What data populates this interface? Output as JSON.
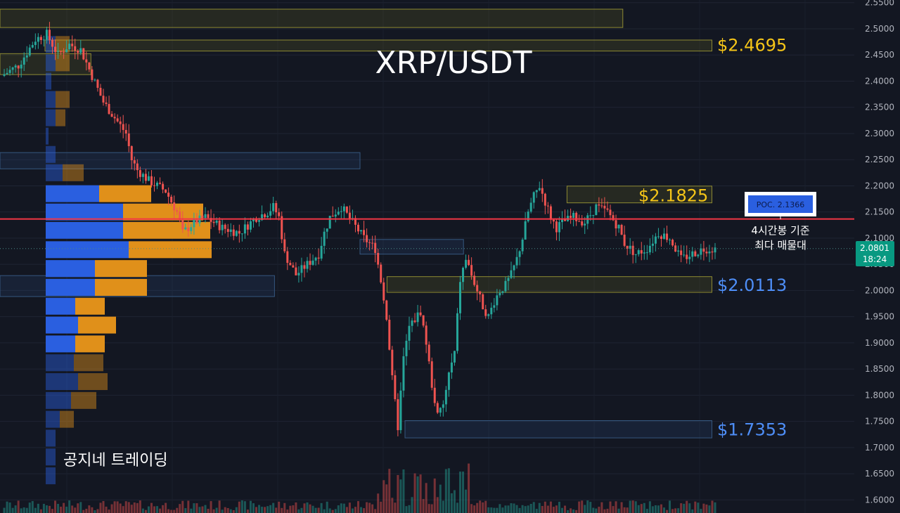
{
  "chart_data": {
    "type": "candlestick",
    "title": "XRP/USDT",
    "watermark": "공지네 트레이딩",
    "ylim": [
      1.575,
      2.555
    ],
    "y_ticks": [
      "2.5500",
      "2.5000",
      "2.4500",
      "2.4000",
      "2.3500",
      "2.3000",
      "2.2500",
      "2.2000",
      "2.1500",
      "2.1000",
      "2.0500",
      "2.0000",
      "1.9500",
      "1.9000",
      "1.8500",
      "1.8000",
      "1.7500",
      "1.7000",
      "1.6500",
      "1.6000"
    ],
    "current_price": {
      "value": "2.0801",
      "countdown": "18:24",
      "level": 2.0801
    },
    "poc": {
      "label": "POC. 2.1366",
      "level": 2.1366,
      "note_line1": "4시간봉 기준",
      "note_line2": "최다 매물대"
    },
    "price_levels": [
      {
        "label": "$2.4695",
        "level": 2.4695,
        "color": "#f5c518"
      },
      {
        "label": "$2.1825",
        "level": 2.1825,
        "color": "#f5c518"
      },
      {
        "label": "$2.0113",
        "level": 2.0113,
        "color": "#4e8ef7"
      },
      {
        "label": "$1.7353",
        "level": 1.7353,
        "color": "#4e8ef7"
      }
    ],
    "zones": [
      {
        "y_top": 2.5375,
        "y_bottom": 2.5025,
        "x_start": 0,
        "x_end": 0.692,
        "kind": "supply"
      },
      {
        "y_top": 2.4785,
        "y_bottom": 2.4575,
        "x_start": 0.05,
        "x_end": 0.791,
        "kind": "supply"
      },
      {
        "y_top": 2.4525,
        "y_bottom": 2.4125,
        "x_start": 0,
        "x_end": 0.101,
        "kind": "supply"
      },
      {
        "y_top": 2.2635,
        "y_bottom": 2.2325,
        "x_start": 0,
        "x_end": 0.4,
        "kind": "demand"
      },
      {
        "y_top": 2.1995,
        "y_bottom": 2.1675,
        "x_start": 0.63,
        "x_end": 0.791,
        "kind": "supply"
      },
      {
        "y_top": 2.0975,
        "y_bottom": 2.0695,
        "x_start": 0.4,
        "x_end": 0.515,
        "kind": "demand"
      },
      {
        "y_top": 2.0285,
        "y_bottom": 1.9885,
        "x_start": 0,
        "x_end": 0.305,
        "kind": "demand"
      },
      {
        "y_top": 2.0265,
        "y_bottom": 1.9965,
        "x_start": 0.43,
        "x_end": 0.791,
        "kind": "supply"
      },
      {
        "y_top": 1.7515,
        "y_bottom": 1.7185,
        "x_start": 0.45,
        "x_end": 0.791,
        "kind": "demand"
      }
    ],
    "volume_profile": [
      {
        "y": 2.47,
        "buy": 14,
        "sell": 20,
        "faded": true
      },
      {
        "y": 2.435,
        "buy": 14,
        "sell": 20,
        "faded": true
      },
      {
        "y": 2.4,
        "buy": 8,
        "sell": 0,
        "faded": true
      },
      {
        "y": 2.365,
        "buy": 14,
        "sell": 20,
        "faded": true
      },
      {
        "y": 2.33,
        "buy": 14,
        "sell": 14,
        "faded": true
      },
      {
        "y": 2.295,
        "buy": 4,
        "sell": 0,
        "faded": true
      },
      {
        "y": 2.26,
        "buy": 14,
        "sell": 0,
        "faded": true
      },
      {
        "y": 2.225,
        "buy": 24,
        "sell": 30,
        "faded": true
      },
      {
        "y": 2.185,
        "buy": 76,
        "sell": 74,
        "faded": false
      },
      {
        "y": 2.15,
        "buy": 110,
        "sell": 114,
        "faded": false
      },
      {
        "y": 2.115,
        "buy": 110,
        "sell": 124,
        "faded": false
      },
      {
        "y": 2.078,
        "buy": 118,
        "sell": 118,
        "faded": false
      },
      {
        "y": 2.042,
        "buy": 70,
        "sell": 74,
        "faded": false
      },
      {
        "y": 2.006,
        "buy": 70,
        "sell": 74,
        "faded": false
      },
      {
        "y": 1.97,
        "buy": 42,
        "sell": 42,
        "faded": false
      },
      {
        "y": 1.934,
        "buy": 46,
        "sell": 54,
        "faded": false
      },
      {
        "y": 1.898,
        "buy": 42,
        "sell": 42,
        "faded": false
      },
      {
        "y": 1.862,
        "buy": 40,
        "sell": 42,
        "faded": true
      },
      {
        "y": 1.826,
        "buy": 46,
        "sell": 42,
        "faded": true
      },
      {
        "y": 1.79,
        "buy": 36,
        "sell": 36,
        "faded": true
      },
      {
        "y": 1.754,
        "buy": 20,
        "sell": 20,
        "faded": true
      },
      {
        "y": 1.718,
        "buy": 14,
        "sell": 0,
        "faded": true
      },
      {
        "y": 1.682,
        "buy": 14,
        "sell": 0,
        "faded": true
      },
      {
        "y": 1.646,
        "buy": 14,
        "sell": 0,
        "faded": true
      }
    ],
    "price_path": [
      [
        0,
        2.41
      ],
      [
        6,
        2.43
      ],
      [
        12,
        2.48
      ],
      [
        16,
        2.49
      ],
      [
        20,
        2.45
      ],
      [
        24,
        2.47
      ],
      [
        28,
        2.46
      ],
      [
        32,
        2.41
      ],
      [
        36,
        2.36
      ],
      [
        40,
        2.33
      ],
      [
        44,
        2.3
      ],
      [
        46,
        2.25
      ],
      [
        48,
        2.23
      ],
      [
        52,
        2.21
      ],
      [
        58,
        2.19
      ],
      [
        62,
        2.15
      ],
      [
        64,
        2.11
      ],
      [
        68,
        2.13
      ],
      [
        72,
        2.14
      ],
      [
        78,
        2.12
      ],
      [
        84,
        2.11
      ],
      [
        90,
        2.14
      ],
      [
        94,
        2.15
      ],
      [
        96,
        2.16
      ],
      [
        98,
        2.14
      ],
      [
        100,
        2.07
      ],
      [
        104,
        2.03
      ],
      [
        108,
        2.05
      ],
      [
        112,
        2.07
      ],
      [
        114,
        2.11
      ],
      [
        116,
        2.14
      ],
      [
        120,
        2.16
      ],
      [
        124,
        2.13
      ],
      [
        128,
        2.1
      ],
      [
        132,
        2.08
      ],
      [
        134,
        2.02
      ],
      [
        136,
        1.95
      ],
      [
        138,
        1.83
      ],
      [
        140,
        1.74
      ],
      [
        142,
        1.87
      ],
      [
        144,
        1.93
      ],
      [
        148,
        1.96
      ],
      [
        150,
        1.9
      ],
      [
        152,
        1.82
      ],
      [
        154,
        1.76
      ],
      [
        156,
        1.78
      ],
      [
        158,
        1.84
      ],
      [
        160,
        1.88
      ],
      [
        162,
        2.02
      ],
      [
        164,
        2.06
      ],
      [
        166,
        2.03
      ],
      [
        168,
        2.0
      ],
      [
        170,
        1.97
      ],
      [
        172,
        1.95
      ],
      [
        174,
        1.98
      ],
      [
        176,
        2.0
      ],
      [
        178,
        2.01
      ],
      [
        180,
        2.03
      ],
      [
        182,
        2.06
      ],
      [
        184,
        2.1
      ],
      [
        186,
        2.15
      ],
      [
        188,
        2.18
      ],
      [
        190,
        2.2
      ],
      [
        192,
        2.17
      ],
      [
        194,
        2.14
      ],
      [
        196,
        2.12
      ],
      [
        198,
        2.13
      ],
      [
        202,
        2.14
      ],
      [
        206,
        2.13
      ],
      [
        210,
        2.16
      ],
      [
        214,
        2.15
      ],
      [
        218,
        2.12
      ],
      [
        220,
        2.09
      ],
      [
        224,
        2.07
      ],
      [
        228,
        2.08
      ],
      [
        232,
        2.11
      ],
      [
        236,
        2.1
      ],
      [
        238,
        2.08
      ],
      [
        240,
        2.06
      ],
      [
        244,
        2.07
      ],
      [
        248,
        2.08
      ],
      [
        252,
        2.08
      ]
    ]
  }
}
